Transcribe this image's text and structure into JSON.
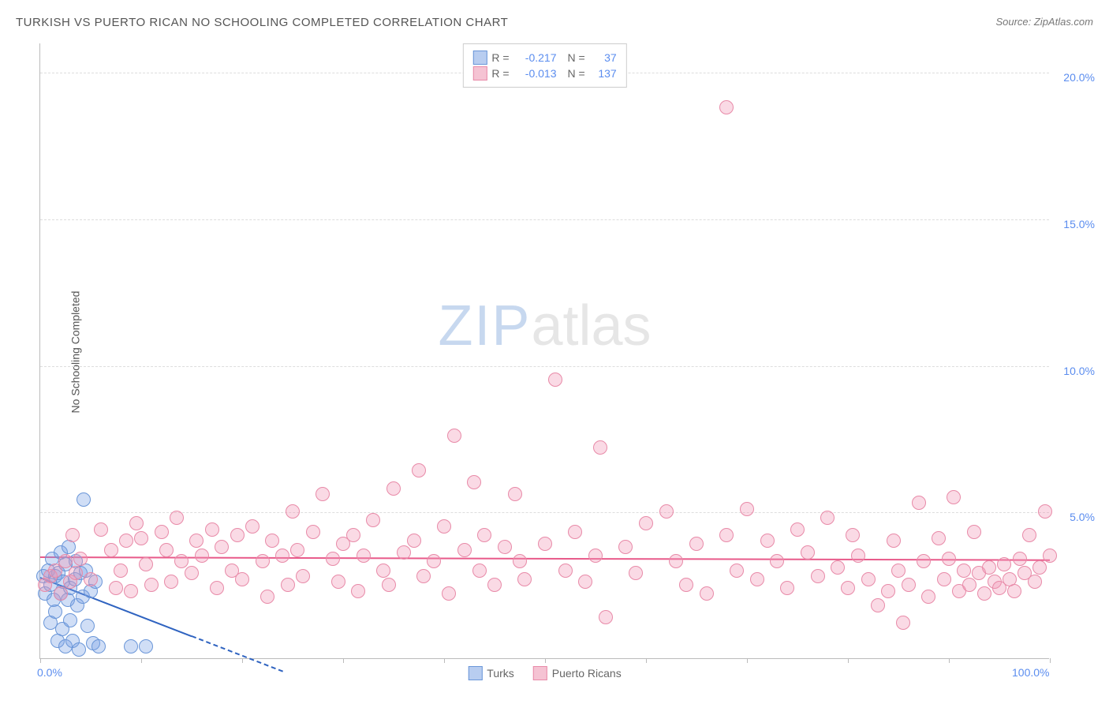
{
  "title": "TURKISH VS PUERTO RICAN NO SCHOOLING COMPLETED CORRELATION CHART",
  "source_prefix": "Source: ",
  "source_name": "ZipAtlas.com",
  "ylabel": "No Schooling Completed",
  "watermark": {
    "part1": "ZIP",
    "part2": "atlas"
  },
  "chart": {
    "type": "scatter",
    "xlim": [
      0,
      100
    ],
    "ylim": [
      0,
      21
    ],
    "x_format": "percent",
    "y_format": "percent",
    "background_color": "#ffffff",
    "grid_color": "#dddddd",
    "axis_color": "#bbbbbb",
    "tick_label_color": "#5b8def",
    "yticks": [
      5,
      10,
      15,
      20
    ],
    "ytick_labels": [
      "5.0%",
      "10.0%",
      "15.0%",
      "20.0%"
    ],
    "xticks": [
      0,
      10,
      20,
      30,
      40,
      50,
      60,
      70,
      80,
      90,
      100
    ],
    "xtick_labels_shown": {
      "0": "0.0%",
      "100": "100.0%"
    },
    "marker_radius": 9,
    "marker_border_width": 1,
    "series": [
      {
        "name": "Turks",
        "color_fill": "rgba(120,160,230,0.35)",
        "color_border": "#6a96d8",
        "swatch_fill": "#b8cdf0",
        "swatch_border": "#6a96d8",
        "R": "-0.217",
        "N": "37",
        "trend": {
          "color": "#2f63c0",
          "solid": {
            "x1": 0,
            "y1": 2.8,
            "x2": 15,
            "y2": 0.8
          },
          "dashed": {
            "x1": 15,
            "y1": 0.8,
            "x2": 24,
            "y2": -0.4
          }
        },
        "points": [
          [
            0.3,
            2.8
          ],
          [
            0.5,
            2.2
          ],
          [
            0.8,
            3.0
          ],
          [
            1.0,
            2.5
          ],
          [
            1.0,
            1.2
          ],
          [
            1.2,
            3.4
          ],
          [
            1.3,
            2.0
          ],
          [
            1.5,
            2.8
          ],
          [
            1.5,
            1.6
          ],
          [
            1.7,
            0.6
          ],
          [
            1.8,
            2.9
          ],
          [
            2.0,
            3.6
          ],
          [
            2.0,
            2.2
          ],
          [
            2.2,
            1.0
          ],
          [
            2.3,
            2.6
          ],
          [
            2.5,
            3.2
          ],
          [
            2.5,
            0.4
          ],
          [
            2.7,
            2.0
          ],
          [
            2.8,
            3.8
          ],
          [
            3.0,
            2.4
          ],
          [
            3.0,
            1.3
          ],
          [
            3.2,
            0.6
          ],
          [
            3.4,
            2.7
          ],
          [
            3.5,
            3.3
          ],
          [
            3.7,
            1.8
          ],
          [
            3.8,
            0.3
          ],
          [
            4.0,
            2.9
          ],
          [
            4.2,
            2.1
          ],
          [
            4.3,
            5.4
          ],
          [
            4.5,
            3.0
          ],
          [
            4.7,
            1.1
          ],
          [
            5.0,
            2.3
          ],
          [
            5.2,
            0.5
          ],
          [
            5.5,
            2.6
          ],
          [
            5.8,
            0.4
          ],
          [
            9.0,
            0.4
          ],
          [
            10.5,
            0.4
          ]
        ]
      },
      {
        "name": "Puerto Ricans",
        "color_fill": "rgba(240,150,180,0.35)",
        "color_border": "#e88aa8",
        "swatch_fill": "#f5c3d3",
        "swatch_border": "#e88aa8",
        "R": "-0.013",
        "N": "137",
        "trend": {
          "color": "#e85a8a",
          "solid": {
            "x1": 0,
            "y1": 3.5,
            "x2": 100,
            "y2": 3.4
          }
        },
        "points": [
          [
            0.5,
            2.5
          ],
          [
            1.0,
            2.8
          ],
          [
            1.5,
            3.0
          ],
          [
            2.0,
            2.2
          ],
          [
            2.5,
            3.3
          ],
          [
            3.0,
            2.6
          ],
          [
            3.2,
            4.2
          ],
          [
            3.5,
            2.9
          ],
          [
            4.0,
            3.4
          ],
          [
            5.0,
            2.7
          ],
          [
            6.0,
            4.4
          ],
          [
            7.0,
            3.7
          ],
          [
            7.5,
            2.4
          ],
          [
            8.0,
            3.0
          ],
          [
            8.5,
            4.0
          ],
          [
            9.0,
            2.3
          ],
          [
            9.5,
            4.6
          ],
          [
            10.0,
            4.1
          ],
          [
            10.5,
            3.2
          ],
          [
            11.0,
            2.5
          ],
          [
            12.0,
            4.3
          ],
          [
            12.5,
            3.7
          ],
          [
            13.0,
            2.6
          ],
          [
            13.5,
            4.8
          ],
          [
            14.0,
            3.3
          ],
          [
            15.0,
            2.9
          ],
          [
            15.5,
            4.0
          ],
          [
            16.0,
            3.5
          ],
          [
            17.0,
            4.4
          ],
          [
            17.5,
            2.4
          ],
          [
            18.0,
            3.8
          ],
          [
            19.0,
            3.0
          ],
          [
            19.5,
            4.2
          ],
          [
            20.0,
            2.7
          ],
          [
            21.0,
            4.5
          ],
          [
            22.0,
            3.3
          ],
          [
            22.5,
            2.1
          ],
          [
            23.0,
            4.0
          ],
          [
            24.0,
            3.5
          ],
          [
            24.5,
            2.5
          ],
          [
            25.0,
            5.0
          ],
          [
            25.5,
            3.7
          ],
          [
            26.0,
            2.8
          ],
          [
            27.0,
            4.3
          ],
          [
            28.0,
            5.6
          ],
          [
            29.0,
            3.4
          ],
          [
            29.5,
            2.6
          ],
          [
            30.0,
            3.9
          ],
          [
            31.0,
            4.2
          ],
          [
            31.5,
            2.3
          ],
          [
            32.0,
            3.5
          ],
          [
            33.0,
            4.7
          ],
          [
            34.0,
            3.0
          ],
          [
            34.5,
            2.5
          ],
          [
            35.0,
            5.8
          ],
          [
            36.0,
            3.6
          ],
          [
            37.0,
            4.0
          ],
          [
            37.5,
            6.4
          ],
          [
            38.0,
            2.8
          ],
          [
            39.0,
            3.3
          ],
          [
            40.0,
            4.5
          ],
          [
            40.5,
            2.2
          ],
          [
            41.0,
            7.6
          ],
          [
            42.0,
            3.7
          ],
          [
            43.0,
            6.0
          ],
          [
            43.5,
            3.0
          ],
          [
            44.0,
            4.2
          ],
          [
            45.0,
            2.5
          ],
          [
            46.0,
            3.8
          ],
          [
            47.0,
            5.6
          ],
          [
            47.5,
            3.3
          ],
          [
            48.0,
            2.7
          ],
          [
            50.0,
            3.9
          ],
          [
            51.0,
            9.5
          ],
          [
            52.0,
            3.0
          ],
          [
            53.0,
            4.3
          ],
          [
            54.0,
            2.6
          ],
          [
            55.0,
            3.5
          ],
          [
            55.5,
            7.2
          ],
          [
            56.0,
            1.4
          ],
          [
            58.0,
            3.8
          ],
          [
            59.0,
            2.9
          ],
          [
            60.0,
            4.6
          ],
          [
            62.0,
            5.0
          ],
          [
            63.0,
            3.3
          ],
          [
            64.0,
            2.5
          ],
          [
            65.0,
            3.9
          ],
          [
            66.0,
            2.2
          ],
          [
            68.0,
            18.8
          ],
          [
            68.0,
            4.2
          ],
          [
            69.0,
            3.0
          ],
          [
            70.0,
            5.1
          ],
          [
            71.0,
            2.7
          ],
          [
            72.0,
            4.0
          ],
          [
            73.0,
            3.3
          ],
          [
            74.0,
            2.4
          ],
          [
            75.0,
            4.4
          ],
          [
            76.0,
            3.6
          ],
          [
            77.0,
            2.8
          ],
          [
            78.0,
            4.8
          ],
          [
            79.0,
            3.1
          ],
          [
            80.0,
            2.4
          ],
          [
            80.5,
            4.2
          ],
          [
            81.0,
            3.5
          ],
          [
            82.0,
            2.7
          ],
          [
            83.0,
            1.8
          ],
          [
            84.0,
            2.3
          ],
          [
            84.5,
            4.0
          ],
          [
            85.0,
            3.0
          ],
          [
            85.5,
            1.2
          ],
          [
            86.0,
            2.5
          ],
          [
            87.0,
            5.3
          ],
          [
            87.5,
            3.3
          ],
          [
            88.0,
            2.1
          ],
          [
            89.0,
            4.1
          ],
          [
            89.5,
            2.7
          ],
          [
            90.0,
            3.4
          ],
          [
            90.5,
            5.5
          ],
          [
            91.0,
            2.3
          ],
          [
            91.5,
            3.0
          ],
          [
            92.0,
            2.5
          ],
          [
            92.5,
            4.3
          ],
          [
            93.0,
            2.9
          ],
          [
            93.5,
            2.2
          ],
          [
            94.0,
            3.1
          ],
          [
            94.5,
            2.6
          ],
          [
            95.0,
            2.4
          ],
          [
            95.5,
            3.2
          ],
          [
            96.0,
            2.7
          ],
          [
            96.5,
            2.3
          ],
          [
            97.0,
            3.4
          ],
          [
            97.5,
            2.9
          ],
          [
            98.0,
            4.2
          ],
          [
            98.5,
            2.6
          ],
          [
            99.0,
            3.1
          ],
          [
            99.5,
            5.0
          ],
          [
            100.0,
            3.5
          ]
        ]
      }
    ]
  },
  "legend_top": {
    "r_label": "R =",
    "n_label": "N ="
  }
}
